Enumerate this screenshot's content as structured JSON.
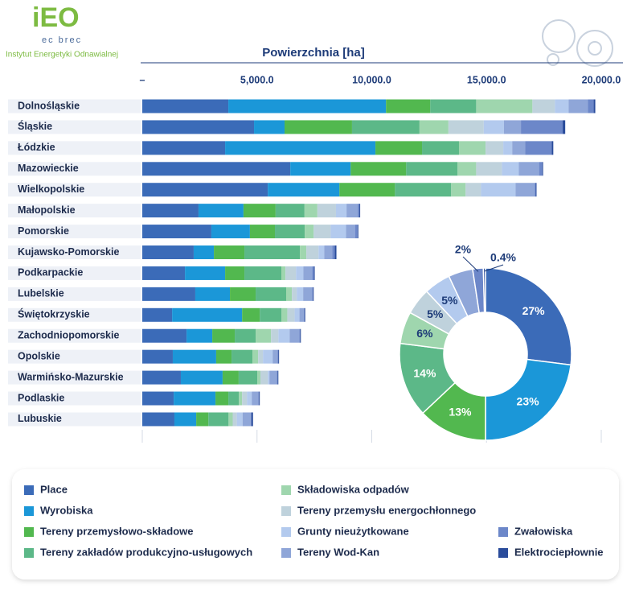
{
  "logo": {
    "mark": "iEO",
    "tagline": "ec brec",
    "name": "Instytut Energetyki Odnawialnej"
  },
  "chart_data": [
    {
      "type": "bar",
      "orientation": "horizontal",
      "stacked": true,
      "title": "Powierzchnia [ha]",
      "categories": [
        "Dolnośląskie",
        "Śląskie",
        "Łódzkie",
        "Mazowieckie",
        "Wielkopolskie",
        "Małopolskie",
        "Pomorskie",
        "Kujawsko-Pomorskie",
        "Podkarpackie",
        "Lubelskie",
        "Świętokrzyskie",
        "Zachodniopomorskie",
        "Opolskie",
        "Warmińsko-Mazurskie",
        "Podlaskie",
        "Lubuskie"
      ],
      "xlim": [
        0,
        20000
      ],
      "xticks": [
        {
          "value": 0,
          "label": "–"
        },
        {
          "value": 5000,
          "label": "5,000.0"
        },
        {
          "value": 10000,
          "label": "10,000.0"
        },
        {
          "value": 15000,
          "label": "15,000.0"
        },
        {
          "value": 20000,
          "label": "20,000.0"
        }
      ],
      "grid": false,
      "legend": "bottom",
      "series": [
        {
          "name": "Place",
          "color": "#3b6bb8",
          "values": [
            3750,
            4870,
            3610,
            6450,
            5470,
            2450,
            3010,
            2240,
            1860,
            2310,
            1300,
            1930,
            1330,
            1680,
            1370,
            1400
          ]
        },
        {
          "name": "Wyrobiska",
          "color": "#1b97d8",
          "values": [
            6870,
            1330,
            6550,
            2630,
            3120,
            1960,
            1680,
            880,
            1750,
            1510,
            3050,
            1120,
            1890,
            1820,
            1820,
            950
          ]
        },
        {
          "name": "Tereny przemysłowo-składowe",
          "color": "#52b84f",
          "values": [
            1930,
            2940,
            2030,
            2420,
            2420,
            1400,
            1090,
            1330,
            840,
            1120,
            770,
            980,
            670,
            700,
            560,
            530
          ]
        },
        {
          "name": "Tereny zakładów produkcyjno-usługowych",
          "color": "#5cb888",
          "values": [
            2000,
            2940,
            1610,
            2240,
            2450,
            1260,
            1300,
            2420,
            1610,
            1330,
            950,
            910,
            910,
            810,
            460,
            880
          ]
        },
        {
          "name": "Składowiska odpadów",
          "color": "#9fd6ae",
          "values": [
            2450,
            1260,
            1160,
            810,
            630,
            560,
            390,
            280,
            180,
            250,
            250,
            670,
            250,
            140,
            140,
            180
          ]
        },
        {
          "name": "Tereny przemysłu energochłonnego",
          "color": "#bfd2dc",
          "values": [
            980,
            1540,
            770,
            1120,
            670,
            810,
            740,
            530,
            460,
            210,
            320,
            320,
            210,
            320,
            210,
            180
          ]
        },
        {
          "name": "Grunty nieużytkowane",
          "color": "#b3caee",
          "values": [
            600,
            880,
            390,
            740,
            1510,
            460,
            670,
            250,
            320,
            280,
            210,
            490,
            420,
            70,
            210,
            250
          ]
        },
        {
          "name": "Tereny Wod-Kan",
          "color": "#8fa6d8",
          "values": [
            840,
            740,
            560,
            880,
            840,
            490,
            390,
            350,
            390,
            390,
            180,
            420,
            210,
            320,
            280,
            350
          ]
        },
        {
          "name": "Zwałowiska",
          "color": "#6c87c9",
          "values": [
            250,
            1820,
            1160,
            140,
            35,
            70,
            110,
            110,
            70,
            35,
            35,
            35,
            35,
            35,
            35,
            35
          ]
        },
        {
          "name": "Elektrociepłownie",
          "color": "#2a4c9b",
          "values": [
            70,
            110,
            70,
            35,
            35,
            35,
            35,
            70,
            35,
            35,
            35,
            35,
            35,
            35,
            35,
            70
          ]
        }
      ]
    },
    {
      "type": "pie",
      "donut": true,
      "values": [
        27,
        23,
        13,
        14,
        6,
        5,
        5,
        4.6,
        2,
        0.4
      ],
      "value_labels": [
        "27%",
        "23%",
        "13%",
        "14%",
        "6%",
        "5%",
        "5%",
        null,
        "2%",
        "0.4%"
      ],
      "colors": [
        "#3b6bb8",
        "#1b97d8",
        "#52b84f",
        "#5cb888",
        "#9fd6ae",
        "#bfd2dc",
        "#b3caee",
        "#8fa6d8",
        "#6c87c9",
        "#2a4c9b"
      ]
    }
  ]
}
